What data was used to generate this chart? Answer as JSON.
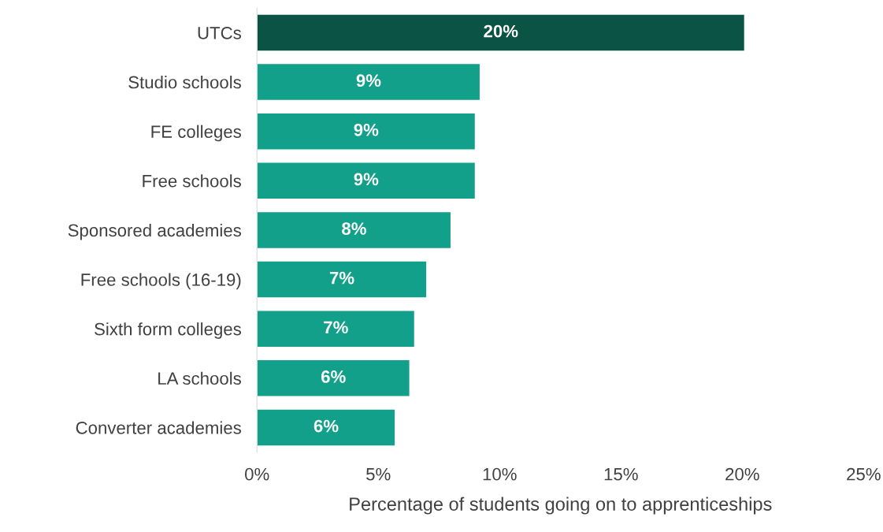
{
  "chart_data": {
    "type": "bar",
    "orientation": "horizontal",
    "xlabel": "Percentage of students going on to apprenticeships",
    "categories": [
      "UTCs",
      "Studio schools",
      "FE colleges",
      "Free schools",
      "Sponsored academies",
      "Free schools (16-19)",
      "Sixth form colleges",
      "LA schools",
      "Converter academies"
    ],
    "values": [
      20.1,
      9.2,
      9.0,
      9.0,
      8.0,
      7.0,
      6.5,
      6.3,
      5.7
    ],
    "value_labels": [
      "20%",
      "9%",
      "9%",
      "9%",
      "8%",
      "7%",
      "7%",
      "6%",
      "6%"
    ],
    "colors": [
      "#0b5345",
      "#13a08a",
      "#13a08a",
      "#13a08a",
      "#13a08a",
      "#13a08a",
      "#13a08a",
      "#13a08a",
      "#13a08a"
    ],
    "xlim": [
      0,
      25
    ],
    "xticks": [
      {
        "value": 0,
        "label": "0%"
      },
      {
        "value": 5,
        "label": "5%"
      },
      {
        "value": 10,
        "label": "10%"
      },
      {
        "value": 15,
        "label": "15%"
      },
      {
        "value": 20,
        "label": "20%"
      },
      {
        "value": 25,
        "label": "25%"
      }
    ],
    "grid": false,
    "legend": false
  }
}
